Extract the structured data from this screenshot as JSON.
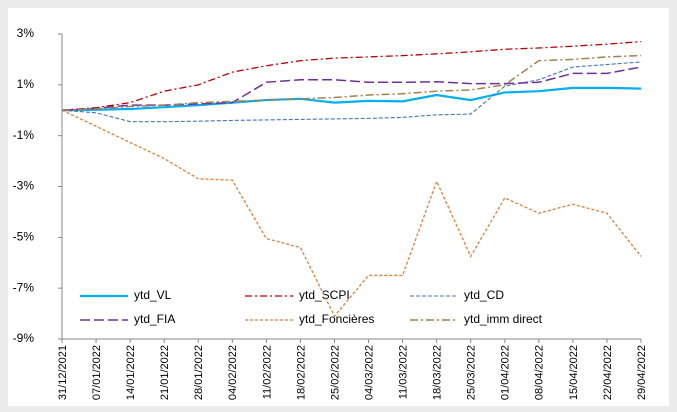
{
  "chart_data": {
    "type": "line",
    "categories": [
      "31/12/2021",
      "07/01/2022",
      "14/01/2022",
      "21/01/2022",
      "28/01/2022",
      "04/02/2022",
      "11/02/2022",
      "18/02/2022",
      "25/02/2022",
      "04/03/2022",
      "11/03/2022",
      "18/03/2022",
      "25/03/2022",
      "01/04/2022",
      "08/04/2022",
      "15/04/2022",
      "22/04/2022",
      "29/04/2022"
    ],
    "series": [
      {
        "name": "ytd_VL",
        "color": "#00b0f0",
        "values": [
          0,
          0.02,
          0.05,
          0.12,
          0.2,
          0.3,
          0.4,
          0.45,
          0.3,
          0.37,
          0.35,
          0.6,
          0.4,
          0.7,
          0.75,
          0.88,
          0.88,
          0.85
        ]
      },
      {
        "name": "ytd_SCPI",
        "color": "#c00000",
        "values": [
          0,
          0.1,
          0.3,
          0.75,
          1.0,
          1.5,
          1.75,
          1.95,
          2.05,
          2.1,
          2.15,
          2.22,
          2.3,
          2.4,
          2.45,
          2.52,
          2.6,
          2.7
        ]
      },
      {
        "name": "ytd_CD",
        "color": "#4472c4",
        "values": [
          0,
          -0.1,
          -0.45,
          -0.45,
          -0.43,
          -0.4,
          -0.38,
          -0.36,
          -0.34,
          -0.32,
          -0.28,
          -0.18,
          -0.15,
          0.95,
          1.2,
          1.7,
          1.8,
          1.9
        ]
      },
      {
        "name": "ytd_FIA",
        "color": "#7030a0",
        "values": [
          0,
          0.08,
          0.2,
          0.2,
          0.25,
          0.3,
          1.1,
          1.2,
          1.2,
          1.1,
          1.1,
          1.12,
          1.05,
          1.05,
          1.1,
          1.45,
          1.45,
          1.7
        ]
      },
      {
        "name": "ytd_Foncières",
        "color": "#ed7d31",
        "values": [
          0,
          -0.63,
          -1.27,
          -1.9,
          -2.7,
          -2.75,
          -5.05,
          -5.4,
          -8.1,
          -6.5,
          -6.5,
          -2.8,
          -5.75,
          -3.45,
          -4.05,
          -3.7,
          -4.05,
          -5.75
        ]
      },
      {
        "name": "ytd_imm direct",
        "color": "#a5804a",
        "values": [
          0,
          0.05,
          0.15,
          0.2,
          0.3,
          0.35,
          0.4,
          0.45,
          0.5,
          0.6,
          0.65,
          0.75,
          0.8,
          1.0,
          1.95,
          2.0,
          2.1,
          2.15
        ]
      }
    ],
    "ylim": [
      -9,
      3
    ],
    "yticks": [
      {
        "value": -9,
        "label": "-9%"
      },
      {
        "value": -7,
        "label": "-7%"
      },
      {
        "value": -5,
        "label": "-5%"
      },
      {
        "value": -3,
        "label": "-3%"
      },
      {
        "value": -1,
        "label": "-1%"
      },
      {
        "value": 1,
        "label": "1%"
      },
      {
        "value": 3,
        "label": "3%"
      }
    ],
    "grid": false,
    "legend": "bottom-left"
  }
}
